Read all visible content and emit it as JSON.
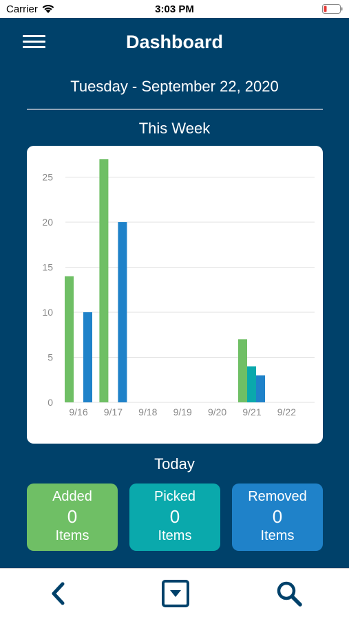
{
  "status_bar": {
    "carrier": "Carrier",
    "time": "3:03 PM"
  },
  "header": {
    "title": "Dashboard"
  },
  "date_label": "Tuesday - September 22, 2020",
  "week_label": "This Week",
  "chart_data": {
    "type": "bar",
    "categories": [
      "9/16",
      "9/17",
      "9/18",
      "9/19",
      "9/20",
      "9/21",
      "9/22"
    ],
    "series": [
      {
        "name": "Added",
        "color": "#6fbf65",
        "values": [
          14,
          27,
          0,
          0,
          0,
          7,
          0
        ]
      },
      {
        "name": "Picked",
        "color": "#0aa9ac",
        "values": [
          0,
          0,
          0,
          0,
          0,
          4,
          0
        ]
      },
      {
        "name": "Removed",
        "color": "#1f82c9",
        "values": [
          10,
          20,
          0,
          0,
          0,
          3,
          0
        ]
      }
    ],
    "yticks": [
      0,
      5,
      10,
      15,
      20,
      25
    ],
    "ylim": [
      0,
      27
    ],
    "grid": true,
    "legend": "none"
  },
  "today_label": "Today",
  "stats": [
    {
      "title": "Added",
      "count": "0",
      "unit": "Items",
      "color": "#6fbf65"
    },
    {
      "title": "Picked",
      "count": "0",
      "unit": "Items",
      "color": "#0aa9ac"
    },
    {
      "title": "Removed",
      "count": "0",
      "unit": "Items",
      "color": "#1f82c9"
    }
  ],
  "tab_bar": {
    "icons": [
      "back-chevron-icon",
      "dropdown-box-icon",
      "search-icon"
    ]
  },
  "colors": {
    "primary": "#00416a",
    "added": "#6fbf65",
    "picked": "#0aa9ac",
    "removed": "#1f82c9"
  }
}
